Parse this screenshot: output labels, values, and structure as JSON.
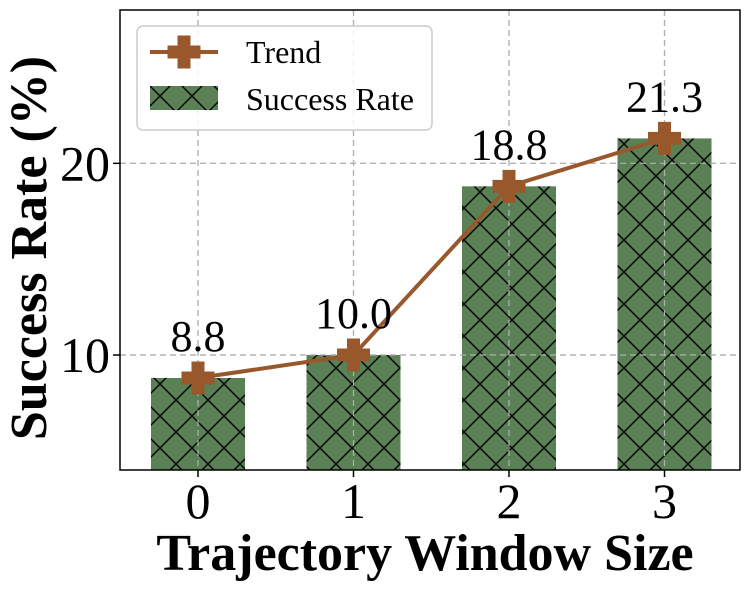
{
  "chart_data": {
    "type": "bar",
    "categories": [
      "0",
      "1",
      "2",
      "3"
    ],
    "series": [
      {
        "name": "Success Rate",
        "type": "bar",
        "values": [
          8.8,
          10.0,
          18.8,
          21.3
        ],
        "color": "#5a8056",
        "hatch": "crosshatch"
      },
      {
        "name": "Trend",
        "type": "line",
        "values": [
          8.8,
          10.0,
          18.8,
          21.3
        ],
        "color": "#98582b",
        "marker": "plus-filled"
      }
    ],
    "data_labels": [
      "8.8",
      "10.0",
      "18.8",
      "21.3"
    ],
    "yticks": [
      10,
      20
    ],
    "ytick_labels": [
      "10",
      "20"
    ],
    "xlabel": "Trajectory Window Size",
    "ylabel": "Success Rate (%)",
    "ylim": [
      4,
      28
    ],
    "grid": true,
    "legend_position": "top-left"
  }
}
